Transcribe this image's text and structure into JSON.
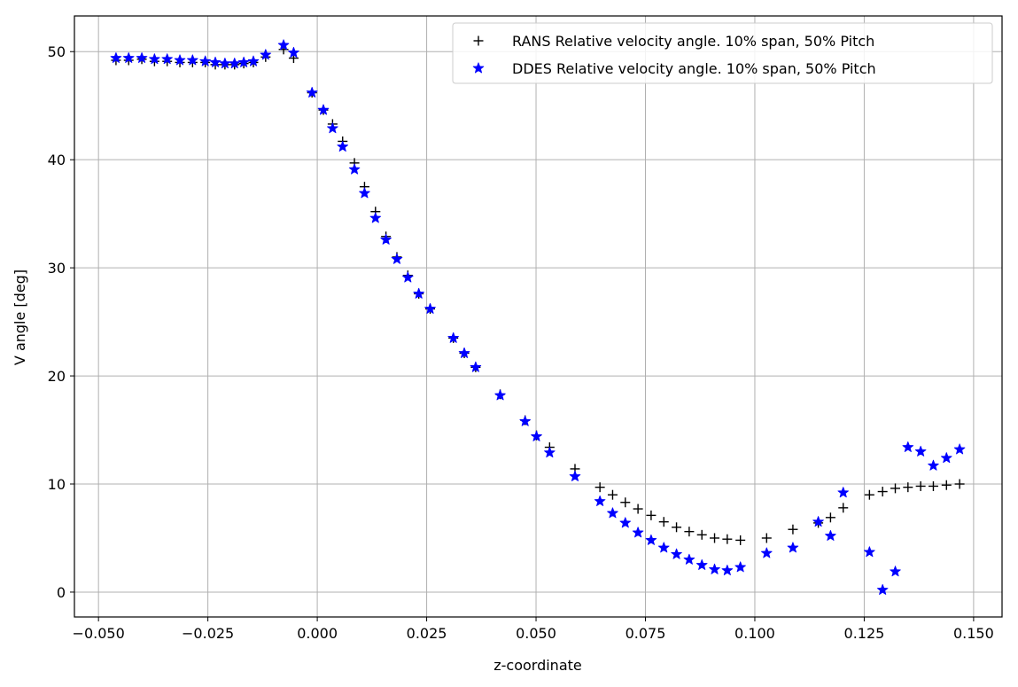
{
  "chart_data": {
    "type": "scatter",
    "title": "",
    "xlabel": "z-coordinate",
    "ylabel": "V angle [deg]",
    "xlim": [
      -0.0555,
      0.1565
    ],
    "ylim": [
      -2.3,
      53.3
    ],
    "grid": true,
    "legend_position": "top-right",
    "x_ticks": [
      -0.05,
      -0.025,
      0.0,
      0.025,
      0.05,
      0.075,
      0.1,
      0.125,
      0.15
    ],
    "x_tick_labels": [
      "−0.050",
      "−0.025",
      "0.000",
      "0.025",
      "0.050",
      "0.075",
      "0.100",
      "0.125",
      "0.150"
    ],
    "y_ticks": [
      0,
      10,
      20,
      30,
      40,
      50
    ],
    "y_tick_labels": [
      "0",
      "10",
      "20",
      "30",
      "40",
      "50"
    ],
    "series": [
      {
        "name": "RANS Relative velocity angle. 10% span, 50% Pitch",
        "marker": "plus",
        "color": "#000000",
        "x": [
          -0.046,
          -0.0431,
          -0.0401,
          -0.0372,
          -0.0343,
          -0.0314,
          -0.0285,
          -0.0256,
          -0.0233,
          -0.0211,
          -0.0189,
          -0.0168,
          -0.0146,
          -0.0118,
          -0.0077,
          -0.0054,
          -0.0012,
          0.0014,
          0.0035,
          0.0058,
          0.0085,
          0.0108,
          0.0133,
          0.0157,
          0.0182,
          0.0207,
          0.0232,
          0.0258,
          0.0311,
          0.0336,
          0.0362,
          0.0418,
          0.0475,
          0.0501,
          0.0531,
          0.0589,
          0.0646,
          0.0675,
          0.0704,
          0.0733,
          0.0763,
          0.0792,
          0.0821,
          0.085,
          0.0879,
          0.0908,
          0.0937,
          0.0967,
          0.1027,
          0.1087,
          0.1145,
          0.1173,
          0.1202,
          0.1262,
          0.1292,
          0.1321,
          0.135,
          0.1379,
          0.1408,
          0.1438,
          0.1468
        ],
        "y": [
          49.2,
          49.2,
          49.3,
          49.1,
          49.1,
          49.0,
          49.0,
          49.0,
          48.8,
          48.8,
          48.8,
          48.9,
          49.0,
          49.5,
          50.2,
          49.4,
          46.2,
          44.6,
          43.3,
          41.7,
          39.7,
          37.5,
          35.2,
          32.9,
          31.0,
          29.3,
          27.6,
          26.2,
          23.5,
          22.1,
          20.8,
          18.3,
          15.9,
          14.5,
          13.4,
          11.4,
          9.7,
          9.0,
          8.3,
          7.7,
          7.1,
          6.5,
          6.0,
          5.6,
          5.3,
          5.0,
          4.9,
          4.8,
          5.0,
          5.8,
          6.4,
          6.9,
          7.8,
          9.0,
          9.3,
          9.6,
          9.7,
          9.8,
          9.8,
          9.9,
          10.0
        ]
      },
      {
        "name": "DDES Relative velocity angle. 10% span, 50% Pitch",
        "marker": "star",
        "color": "#0000ff",
        "x": [
          -0.046,
          -0.0431,
          -0.0401,
          -0.0372,
          -0.0343,
          -0.0314,
          -0.0285,
          -0.0256,
          -0.0233,
          -0.0211,
          -0.0189,
          -0.0168,
          -0.0146,
          -0.0118,
          -0.0077,
          -0.0054,
          -0.0012,
          0.0014,
          0.0035,
          0.0058,
          0.0085,
          0.0108,
          0.0133,
          0.0157,
          0.0182,
          0.0207,
          0.0232,
          0.0258,
          0.0311,
          0.0336,
          0.0362,
          0.0418,
          0.0475,
          0.0501,
          0.0531,
          0.0589,
          0.0646,
          0.0675,
          0.0704,
          0.0733,
          0.0763,
          0.0792,
          0.0821,
          0.085,
          0.0879,
          0.0908,
          0.0937,
          0.0967,
          0.1027,
          0.1087,
          0.1145,
          0.1173,
          0.1202,
          0.1262,
          0.1292,
          0.1321,
          0.135,
          0.1379,
          0.1408,
          0.1438,
          0.1468
        ],
        "y": [
          49.4,
          49.4,
          49.4,
          49.3,
          49.3,
          49.2,
          49.2,
          49.1,
          49.0,
          48.9,
          48.9,
          49.0,
          49.1,
          49.7,
          50.6,
          49.9,
          46.2,
          44.6,
          42.9,
          41.2,
          39.1,
          36.9,
          34.6,
          32.6,
          30.8,
          29.1,
          27.6,
          26.2,
          23.5,
          22.1,
          20.8,
          18.2,
          15.8,
          14.4,
          12.9,
          10.7,
          8.4,
          7.3,
          6.4,
          5.5,
          4.8,
          4.1,
          3.5,
          3.0,
          2.5,
          2.1,
          2.0,
          2.3,
          3.6,
          4.1,
          6.5,
          5.2,
          9.2,
          3.7,
          0.2,
          1.9,
          13.4,
          13.0,
          11.7,
          12.4,
          13.2
        ]
      }
    ]
  }
}
